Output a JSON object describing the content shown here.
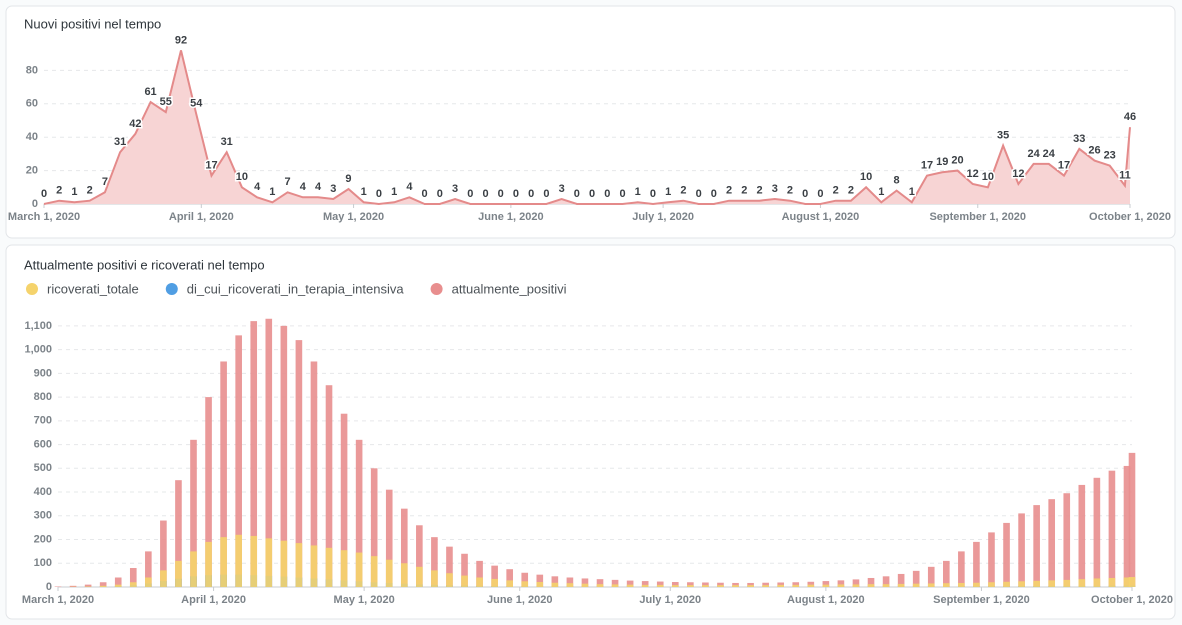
{
  "chart_data": [
    {
      "type": "area",
      "title": "Nuovi positivi nel tempo",
      "color": "#e48a8a",
      "fill": "#f7d4d4",
      "grid": true,
      "x": [
        "2020-03-01",
        "2020-03-04",
        "2020-03-07",
        "2020-03-10",
        "2020-03-13",
        "2020-03-16",
        "2020-03-19",
        "2020-03-22",
        "2020-03-25",
        "2020-03-28",
        "2020-03-31",
        "2020-04-03",
        "2020-04-06",
        "2020-04-09",
        "2020-04-12",
        "2020-04-15",
        "2020-04-18",
        "2020-04-21",
        "2020-04-24",
        "2020-04-27",
        "2020-04-30",
        "2020-05-03",
        "2020-05-06",
        "2020-05-09",
        "2020-05-12",
        "2020-05-15",
        "2020-05-18",
        "2020-05-21",
        "2020-05-24",
        "2020-05-27",
        "2020-05-30",
        "2020-06-02",
        "2020-06-05",
        "2020-06-08",
        "2020-06-11",
        "2020-06-14",
        "2020-06-17",
        "2020-06-20",
        "2020-06-23",
        "2020-06-26",
        "2020-06-29",
        "2020-07-02",
        "2020-07-05",
        "2020-07-08",
        "2020-07-11",
        "2020-07-14",
        "2020-07-17",
        "2020-07-20",
        "2020-07-23",
        "2020-07-26",
        "2020-07-29",
        "2020-08-01",
        "2020-08-04",
        "2020-08-07",
        "2020-08-10",
        "2020-08-13",
        "2020-08-16",
        "2020-08-19",
        "2020-08-22",
        "2020-08-25",
        "2020-08-28",
        "2020-08-31",
        "2020-09-03",
        "2020-09-06",
        "2020-09-09",
        "2020-09-12",
        "2020-09-15",
        "2020-09-18",
        "2020-09-21",
        "2020-09-24",
        "2020-09-27",
        "2020-09-30",
        "2020-10-01"
      ],
      "values": [
        0,
        2,
        1,
        2,
        7,
        31,
        42,
        61,
        55,
        92,
        54,
        17,
        31,
        10,
        4,
        1,
        7,
        4,
        4,
        3,
        9,
        1,
        0,
        1,
        4,
        0,
        0,
        3,
        0,
        0,
        0,
        0,
        0,
        0,
        3,
        0,
        0,
        0,
        0,
        1,
        0,
        1,
        2,
        0,
        0,
        2,
        2,
        2,
        3,
        2,
        0,
        0,
        2,
        2,
        10,
        1,
        8,
        1,
        17,
        19,
        20,
        12,
        10,
        35,
        12,
        24,
        24,
        17,
        33,
        26,
        23,
        11,
        46
      ],
      "xlim": [
        "2020-03-01",
        "2020-10-01"
      ],
      "xticks": [
        {
          "value": "2020-03-01",
          "label": "March 1, 2020"
        },
        {
          "value": "2020-04-01",
          "label": "April 1, 2020"
        },
        {
          "value": "2020-05-01",
          "label": "May 1, 2020"
        },
        {
          "value": "2020-06-01",
          "label": "June 1, 2020"
        },
        {
          "value": "2020-07-01",
          "label": "July 1, 2020"
        },
        {
          "value": "2020-08-01",
          "label": "August 1, 2020"
        },
        {
          "value": "2020-09-01",
          "label": "September 1, 2020"
        },
        {
          "value": "2020-10-01",
          "label": "October 1, 2020"
        }
      ],
      "ylim": [
        0,
        100
      ],
      "yticks": [
        0,
        20,
        40,
        60,
        80
      ]
    },
    {
      "type": "bar",
      "title": "Attualmente positivi e ricoverati nel tempo",
      "grid": true,
      "legend": "top-left",
      "x": [
        "2020-03-01",
        "2020-03-04",
        "2020-03-07",
        "2020-03-10",
        "2020-03-13",
        "2020-03-16",
        "2020-03-19",
        "2020-03-22",
        "2020-03-25",
        "2020-03-28",
        "2020-03-31",
        "2020-04-03",
        "2020-04-06",
        "2020-04-09",
        "2020-04-12",
        "2020-04-15",
        "2020-04-18",
        "2020-04-21",
        "2020-04-24",
        "2020-04-27",
        "2020-04-30",
        "2020-05-03",
        "2020-05-06",
        "2020-05-09",
        "2020-05-12",
        "2020-05-15",
        "2020-05-18",
        "2020-05-21",
        "2020-05-24",
        "2020-05-27",
        "2020-05-30",
        "2020-06-02",
        "2020-06-05",
        "2020-06-08",
        "2020-06-11",
        "2020-06-14",
        "2020-06-17",
        "2020-06-20",
        "2020-06-23",
        "2020-06-26",
        "2020-06-29",
        "2020-07-02",
        "2020-07-05",
        "2020-07-08",
        "2020-07-11",
        "2020-07-14",
        "2020-07-17",
        "2020-07-20",
        "2020-07-23",
        "2020-07-26",
        "2020-07-29",
        "2020-08-01",
        "2020-08-04",
        "2020-08-07",
        "2020-08-10",
        "2020-08-13",
        "2020-08-16",
        "2020-08-19",
        "2020-08-22",
        "2020-08-25",
        "2020-08-28",
        "2020-08-31",
        "2020-09-03",
        "2020-09-06",
        "2020-09-09",
        "2020-09-12",
        "2020-09-15",
        "2020-09-18",
        "2020-09-21",
        "2020-09-24",
        "2020-09-27",
        "2020-09-30",
        "2020-10-01"
      ],
      "series": [
        {
          "name": "ricoverati_totale",
          "color": "#f5d36c",
          "values": [
            0,
            1,
            2,
            5,
            10,
            20,
            40,
            70,
            110,
            150,
            190,
            210,
            220,
            215,
            205,
            195,
            185,
            175,
            165,
            155,
            145,
            130,
            115,
            100,
            85,
            70,
            58,
            48,
            40,
            34,
            28,
            24,
            21,
            18,
            16,
            14,
            12,
            11,
            10,
            9,
            9,
            8,
            8,
            8,
            8,
            8,
            8,
            8,
            9,
            9,
            10,
            10,
            11,
            11,
            12,
            12,
            13,
            14,
            15,
            16,
            17,
            18,
            20,
            22,
            24,
            26,
            28,
            30,
            33,
            36,
            38,
            40,
            42
          ]
        },
        {
          "name": "di_cui_ricoverati_in_terapia_intensiva",
          "color": "#509ee3",
          "values": [
            0,
            0,
            1,
            2,
            4,
            8,
            15,
            25,
            35,
            45,
            50,
            52,
            52,
            50,
            47,
            44,
            40,
            36,
            32,
            28,
            24,
            20,
            17,
            14,
            11,
            9,
            7,
            6,
            5,
            4,
            3,
            3,
            2,
            2,
            2,
            2,
            1,
            1,
            1,
            1,
            1,
            1,
            1,
            1,
            1,
            1,
            1,
            1,
            1,
            1,
            1,
            1,
            1,
            1,
            1,
            1,
            2,
            2,
            2,
            2,
            3,
            3,
            3,
            3,
            4,
            4,
            4,
            5,
            5,
            5,
            6,
            6,
            6
          ]
        },
        {
          "name": "attualmente_positivi",
          "color": "#e88e8e",
          "values": [
            2,
            5,
            10,
            20,
            40,
            80,
            150,
            280,
            450,
            620,
            800,
            950,
            1060,
            1120,
            1130,
            1100,
            1040,
            950,
            850,
            730,
            620,
            500,
            410,
            330,
            260,
            210,
            170,
            140,
            110,
            90,
            75,
            60,
            52,
            45,
            40,
            36,
            33,
            30,
            27,
            25,
            23,
            21,
            20,
            19,
            18,
            17,
            17,
            18,
            19,
            20,
            22,
            25,
            28,
            32,
            38,
            45,
            55,
            68,
            85,
            110,
            150,
            190,
            230,
            270,
            310,
            345,
            370,
            395,
            430,
            460,
            490,
            510,
            565
          ]
        }
      ],
      "xlim": [
        "2020-03-01",
        "2020-10-01"
      ],
      "xticks": [
        {
          "value": "2020-03-01",
          "label": "March 1, 2020"
        },
        {
          "value": "2020-04-01",
          "label": "April 1, 2020"
        },
        {
          "value": "2020-05-01",
          "label": "May 1, 2020"
        },
        {
          "value": "2020-06-01",
          "label": "June 1, 2020"
        },
        {
          "value": "2020-07-01",
          "label": "July 1, 2020"
        },
        {
          "value": "2020-08-01",
          "label": "August 1, 2020"
        },
        {
          "value": "2020-09-01",
          "label": "September 1, 2020"
        },
        {
          "value": "2020-10-01",
          "label": "October 1, 2020"
        }
      ],
      "ylim": [
        0,
        1150
      ],
      "yticks": [
        0,
        100,
        200,
        300,
        400,
        500,
        600,
        700,
        800,
        900,
        {
          "value": 1000,
          "label": "1,000"
        },
        {
          "value": 1100,
          "label": "1,100"
        }
      ]
    }
  ]
}
